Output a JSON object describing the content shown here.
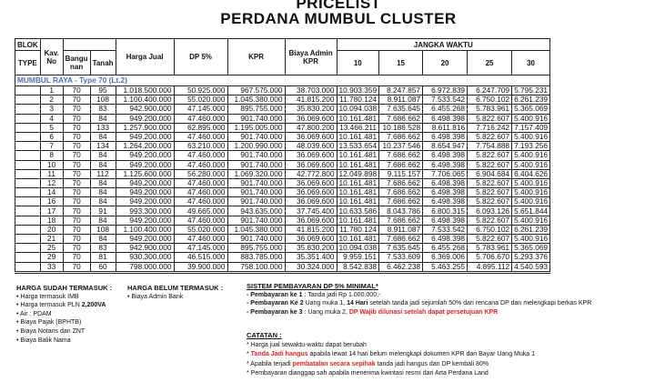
{
  "title": "PRICELIST",
  "subtitle": "PERDANA MUMBUL CLUSTER",
  "table": {
    "headers": {
      "blok": "BLOK",
      "type": "TYPE",
      "kav": "Kav. No",
      "bangunan": "Bangu nan",
      "tanah": "Tanah",
      "harga": "Harga Jual",
      "dp": "DP 5%",
      "kpr": "KPR",
      "admin": "Biaya Admin KPR",
      "jangka": "JANGKA WAKTU",
      "years": [
        "10",
        "15",
        "20",
        "25",
        "30"
      ]
    },
    "section": "MUMBUL RAYA - Type 70 (Lt.2)",
    "rows": [
      [
        "1",
        "70",
        "95",
        "1.018.500.000",
        "50.925.000",
        "967.575.000",
        "38.703.000",
        "10.903.359",
        "8.247.857",
        "6.972.839",
        "6.247.709",
        "5.795.231"
      ],
      [
        "2",
        "70",
        "108",
        "1.100.400.000",
        "55.020.000",
        "1.045.380.000",
        "41.815.200",
        "11.780.124",
        "8.911.087",
        "7.533.542",
        "6.750.102",
        "6.261.239"
      ],
      [
        "3",
        "70",
        "83",
        "942.900.000",
        "47.145.000",
        "895.755.000",
        "35.830.200",
        "10.094.038",
        "7.635.645",
        "6.455.268",
        "5.783.961",
        "5.365.069"
      ],
      [
        "4",
        "70",
        "84",
        "949.200.000",
        "47.460.000",
        "901.740.000",
        "36.069.600",
        "10.161.481",
        "7.686.662",
        "6.498.398",
        "5.822.607",
        "5.400.916"
      ],
      [
        "5",
        "70",
        "133",
        "1.257.900.000",
        "62.895.000",
        "1.195.005.000",
        "47.800.200",
        "13.466.211",
        "10.186.528",
        "8.611.816",
        "7.716.242",
        "7.157.409"
      ],
      [
        "6",
        "70",
        "84",
        "949.200.000",
        "47.460.000",
        "901.740.000",
        "36.069.600",
        "10.161.481",
        "7.686.662",
        "6.498.398",
        "5.822.607",
        "5.400.916"
      ],
      [
        "7",
        "70",
        "134",
        "1.264.200.000",
        "63.210.000",
        "1.200.990.000",
        "48.039.600",
        "13.533.654",
        "10.237.546",
        "8.654.947",
        "7.754.888",
        "7.193.256"
      ],
      [
        "8",
        "70",
        "84",
        "949.200.000",
        "47.460.000",
        "901.740.000",
        "36.069.600",
        "10.161.481",
        "7.686.662",
        "6.498.398",
        "5.822.607",
        "5.400.916"
      ],
      [
        "10",
        "70",
        "84",
        "949.200.000",
        "47.460.000",
        "901.740.000",
        "36.069.600",
        "10.161.481",
        "7.686.662",
        "6.498.398",
        "5.822.607",
        "5.400.916"
      ],
      [
        "11",
        "70",
        "112",
        "1.125.600.000",
        "56.280.000",
        "1.069.320.000",
        "42.772.800",
        "12.049.898",
        "9.115.157",
        "7.706.065",
        "6.904.684",
        "6.404.626"
      ],
      [
        "12",
        "70",
        "84",
        "949.200.000",
        "47.460.000",
        "901.740.000",
        "36.069.600",
        "10.161.481",
        "7.686.662",
        "6.498.398",
        "5.822.607",
        "5.400.916"
      ],
      [
        "14",
        "70",
        "84",
        "949.200.000",
        "47.460.000",
        "901.740.000",
        "36.069.600",
        "10.161.481",
        "7.686.662",
        "6.498.398",
        "5.822.607",
        "5.400.916"
      ],
      [
        "16",
        "70",
        "84",
        "949.200.000",
        "47.460.000",
        "901.740.000",
        "36.069.600",
        "10.161.481",
        "7.686.662",
        "6.498.398",
        "5.822.607",
        "5.400.916"
      ],
      [
        "17",
        "70",
        "91",
        "993.300.000",
        "49.665.000",
        "943.635.000",
        "37.745.400",
        "10.633.586",
        "8.043.786",
        "6.800.315",
        "6.093.126",
        "5.651.844"
      ],
      [
        "18",
        "70",
        "84",
        "949.200.000",
        "47.460.000",
        "901.740.000",
        "36.069.600",
        "10.161.481",
        "7.686.662",
        "6.498.398",
        "5.822.607",
        "5.400.916"
      ],
      [
        "20",
        "70",
        "108",
        "1.100.400.000",
        "55.020.000",
        "1.045.380.000",
        "41.815.200",
        "11.780.124",
        "8.911.087",
        "7.533.542",
        "6.750.102",
        "6.261.239"
      ],
      [
        "21",
        "70",
        "84",
        "949.200.000",
        "47.460.000",
        "901.740.000",
        "36.069.600",
        "10.161.481",
        "7.686.662",
        "6.498.398",
        "5.822.607",
        "5.400.916"
      ],
      [
        "25",
        "70",
        "83",
        "942.900.000",
        "47.145.000",
        "895.755.000",
        "35.830.200",
        "10.094.038",
        "7.635.645",
        "6.455.268",
        "5.783.961",
        "5.365.069"
      ],
      [
        "29",
        "70",
        "81",
        "930.300.000",
        "46.515.000",
        "883.785.000",
        "35.351.400",
        "9.959.151",
        "7.533.609",
        "6.369.006",
        "5.706.670",
        "5.293.376"
      ],
      [
        "33",
        "70",
        "60",
        "798.000.000",
        "39.900.000",
        "758.100.000",
        "30.324.000",
        "8.542.838",
        "6.462.238",
        "5.463.255",
        "4.895.112",
        "4.540.593"
      ]
    ]
  },
  "included": {
    "title": "HARGA SUDAH TERMASUK :",
    "items": [
      "• Harga termasuk IMB",
      "• Harga termasuk PLN ",
      "• Air : PDAM",
      "• Biaya Pajak (BPHTB)",
      "• Biaya Notaris dan ZNT",
      "• Biaya Balik Nama"
    ],
    "pln_value": "2,200VA"
  },
  "excluded": {
    "title": "HARGA BELUM TERMASUK :",
    "items": [
      "• Biaya Admin Bank"
    ]
  },
  "payment": {
    "title": "SISTEM PEMBAYARAN DP 5% MINIMAL*",
    "p1_label": "- Pembayaran ke 1",
    "p1_text": " : Tanda jadi Rp 1.000.000,-",
    "p2_label": "- Pembayaran Ke 2",
    "p2_a": " Uang muka 1, ",
    "p2_bold": "14 Hari",
    "p2_b": " setelah tanda jadi sejumlah 50%  dari rencana DP dan melengkapi berkas KPR",
    "p3_label": "- Pembayaran ke 3",
    "p3_a": " : Uang muka 2, ",
    "p3_red": "DP Wajib dilunasi setelah dapat persetujuan KPR"
  },
  "notes": {
    "title": "CATATAN :",
    "n1": "* Harga jual sewaktu-waktu dapat berubah",
    "n2_a": "* ",
    "n2_red": "Tanda Jadi hangus",
    "n2_b": " apabila lewat 14 hari belum melengkapi dokumen KPR dan Bayar Uang Muka 1",
    "n3_a": "* Apabila terjadi ",
    "n3_red": "pembatalan secara sepihak",
    "n3_b": " tanda jadi hangus dan DP kembali 80%",
    "n4": "* Pembayaran dianggap sah apabila menerima kwintasi resmi dari Arta Perdana Land"
  },
  "colors": {
    "section": "#4a72b8",
    "highlight": "#e02020"
  }
}
